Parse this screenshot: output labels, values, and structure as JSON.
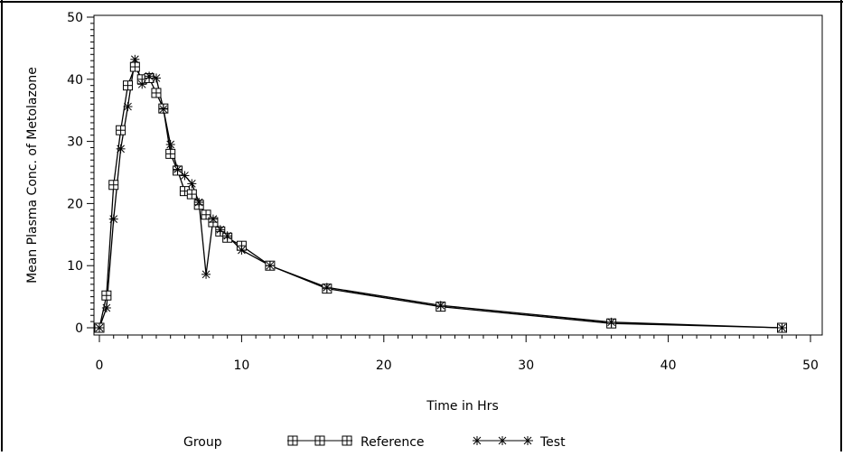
{
  "chart_data": {
    "type": "line",
    "title": "",
    "xlabel": "Time in Hrs",
    "ylabel": "Mean Plasma Conc. of Metolazone",
    "xlim": [
      0,
      50
    ],
    "ylim": [
      0,
      50
    ],
    "xticks": [
      "0",
      "10",
      "20",
      "30",
      "40",
      "50"
    ],
    "yticks": [
      "0",
      "10",
      "20",
      "30",
      "40",
      "50"
    ],
    "grid": false,
    "legend": {
      "title": "Group",
      "placement": "bottom"
    },
    "series": [
      {
        "name": "Reference",
        "marker": "square-plus",
        "color": "#000000",
        "x": [
          0,
          0.5,
          1,
          1.5,
          2,
          2.5,
          3,
          3.5,
          4,
          4.5,
          5,
          5.5,
          6,
          6.5,
          7,
          7.5,
          8,
          8.5,
          9,
          10,
          12,
          16,
          24,
          36,
          48
        ],
        "values": [
          0,
          5.2,
          23.0,
          31.8,
          39.0,
          42.0,
          40.0,
          40.2,
          37.8,
          35.3,
          28.0,
          25.3,
          22.0,
          21.5,
          19.8,
          18.2,
          17.0,
          15.5,
          14.5,
          13.2,
          10.0,
          6.3,
          3.4,
          0.7,
          0
        ]
      },
      {
        "name": "Test",
        "marker": "asterisk",
        "color": "#000000",
        "x": [
          0,
          0.5,
          1,
          1.5,
          2,
          2.5,
          3,
          3.5,
          4,
          4.5,
          5,
          5.5,
          6,
          6.5,
          7,
          7.5,
          8,
          8.5,
          9,
          10,
          12,
          16,
          24,
          36,
          48
        ],
        "values": [
          0,
          3.2,
          17.5,
          28.8,
          35.6,
          43.2,
          39.2,
          40.5,
          40.2,
          35.2,
          29.5,
          25.5,
          24.5,
          23.2,
          20.2,
          8.6,
          17.5,
          15.8,
          14.8,
          12.5,
          10.0,
          6.5,
          3.6,
          0.9,
          0
        ]
      }
    ]
  }
}
